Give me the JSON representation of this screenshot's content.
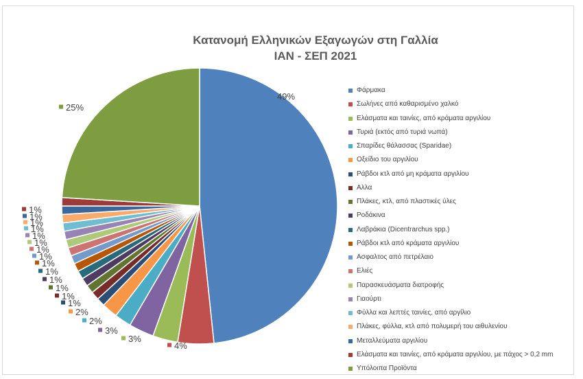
{
  "chart_data": {
    "type": "pie",
    "title": "Κατανομή Ελληνικών Εξαγωγών στη Γαλλία",
    "subtitle": "ΙΑΝ - ΣΕΠ 2021",
    "legend_position": "right",
    "slices": [
      {
        "label": "Φάρμακα",
        "value": 49,
        "value_label": "49%",
        "color": "#4f81bd"
      },
      {
        "label": "Σωλήνες από καθαρισμένο χαλκό",
        "value": 4,
        "value_label": "4%",
        "color": "#c0504d"
      },
      {
        "label": "Ελάσματα και ταινίες, από κράματα αργιλίου",
        "value": 3,
        "value_label": "3%",
        "color": "#9bbb59"
      },
      {
        "label": "Τυριά (εκτός από τυριά νωπά)",
        "value": 3,
        "value_label": "3%",
        "color": "#8064a2"
      },
      {
        "label": "Σπαρίδες θάλασσας (Sparidae)",
        "value": 2,
        "value_label": "2%",
        "color": "#4bacc6"
      },
      {
        "label": "Οξείδιο του αργιλίου",
        "value": 2,
        "value_label": "2%",
        "color": "#f79646"
      },
      {
        "label": "Ράβδοι κτλ από μη κράματα αργιλίου",
        "value": 1,
        "value_label": "1%",
        "color": "#2c4d75"
      },
      {
        "label": "Αλλα",
        "value": 1,
        "value_label": "1%",
        "color": "#772c2a"
      },
      {
        "label": "Πλάκες, κτλ, από πλαστικές ύλες",
        "value": 1,
        "value_label": "1%",
        "color": "#5f7530"
      },
      {
        "label": "Ροδάκινα",
        "value": 1,
        "value_label": "1%",
        "color": "#4d3b62"
      },
      {
        "label": "Λαβράκια (Dicentrarchus spp.)",
        "value": 1,
        "value_label": "1%",
        "color": "#276a7c"
      },
      {
        "label": "Ράβδοι κτλ από κράματα αργιλίου",
        "value": 1,
        "value_label": "1%",
        "color": "#b65708"
      },
      {
        "label": "Ασφαλτος από πετρέλαιο",
        "value": 1,
        "value_label": "1%",
        "color": "#729aca"
      },
      {
        "label": "Ελιές",
        "value": 1,
        "value_label": "1%",
        "color": "#cd7371"
      },
      {
        "label": "Παρασκευάσματα διατροφής",
        "value": 1,
        "value_label": "1%",
        "color": "#afc97a"
      },
      {
        "label": "Γιαούρτι",
        "value": 1,
        "value_label": "1%",
        "color": "#9983b5"
      },
      {
        "label": "Φύλλα και λεπτές ταινίες, από αργίλιο",
        "value": 1,
        "value_label": "1%",
        "color": "#6fbdd1"
      },
      {
        "label": "Πλάκες, φύλλα, κτλ από πολυμερή του αιθυλενίου",
        "value": 1,
        "value_label": "1%",
        "color": "#f9ab6b"
      },
      {
        "label": "Μεταλλεύματα αργιλίου",
        "value": 1,
        "value_label": "1%",
        "color": "#3a679c"
      },
      {
        "label": "Ελάσματα και ταινίες, από κράματα αργιλίου, με πάχος > 0,2 mm",
        "value": 1,
        "value_label": "1%",
        "color": "#9e3b38"
      },
      {
        "label": "Υπόλοιπα Προϊόντα",
        "value": 25,
        "value_label": "25%",
        "color": "#7e9c40"
      }
    ]
  }
}
